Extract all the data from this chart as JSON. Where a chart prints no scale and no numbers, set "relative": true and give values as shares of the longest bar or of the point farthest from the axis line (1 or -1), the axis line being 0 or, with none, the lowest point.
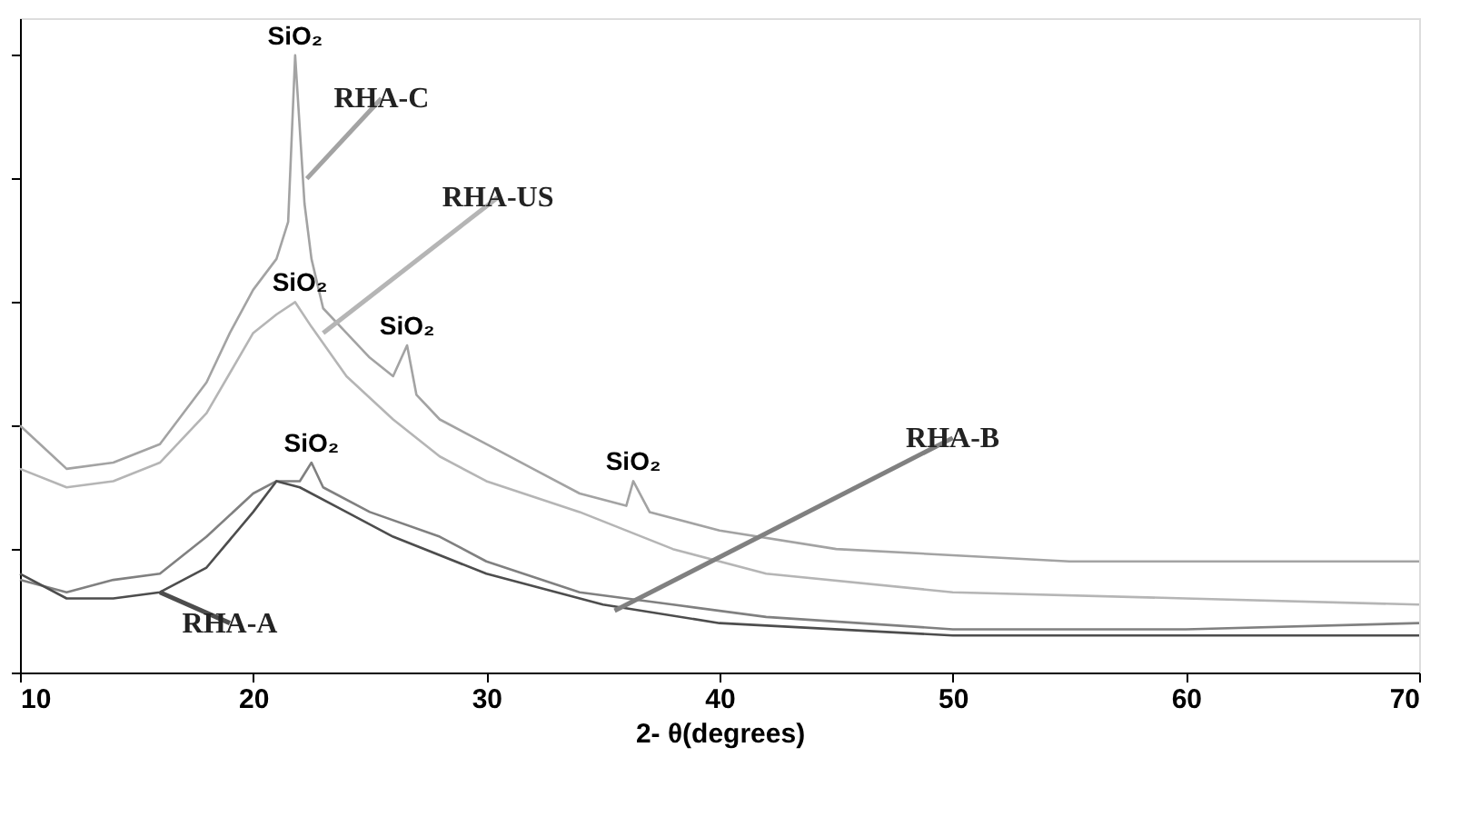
{
  "chart_data": {
    "type": "line",
    "relative": true,
    "xlabel": "2- θ(degrees)",
    "xlim": [
      10,
      70
    ],
    "xticks": [
      10,
      20,
      30,
      40,
      50,
      60,
      70
    ],
    "legend": false,
    "marker": "none",
    "line_style": "solid",
    "series": [
      {
        "name": "RHA-C",
        "color": "#a3a3a3",
        "x": [
          10,
          12,
          14,
          16,
          18,
          19,
          20,
          21,
          21.5,
          21.8,
          22.2,
          22.5,
          23,
          24,
          25,
          26,
          26.6,
          27,
          28,
          30,
          32,
          34,
          36,
          36.3,
          37,
          40,
          45,
          50,
          55,
          60,
          65,
          70
        ],
        "values": [
          0.4,
          0.33,
          0.34,
          0.37,
          0.47,
          0.55,
          0.62,
          0.67,
          0.73,
          1.0,
          0.76,
          0.67,
          0.59,
          0.55,
          0.51,
          0.48,
          0.53,
          0.45,
          0.41,
          0.37,
          0.33,
          0.29,
          0.27,
          0.31,
          0.26,
          0.23,
          0.2,
          0.19,
          0.18,
          0.18,
          0.18,
          0.18
        ]
      },
      {
        "name": "RHA-US",
        "color": "#b5b5b5",
        "x": [
          10,
          12,
          14,
          16,
          18,
          20,
          21,
          21.8,
          22.5,
          24,
          26,
          28,
          30,
          34,
          38,
          42,
          50,
          60,
          70
        ],
        "values": [
          0.33,
          0.3,
          0.31,
          0.34,
          0.42,
          0.55,
          0.58,
          0.6,
          0.56,
          0.48,
          0.41,
          0.35,
          0.31,
          0.26,
          0.2,
          0.16,
          0.13,
          0.12,
          0.11
        ]
      },
      {
        "name": "RHA-B",
        "color": "#808080",
        "x": [
          10,
          12,
          14,
          16,
          18,
          20,
          21,
          22,
          22.5,
          23,
          25,
          28,
          30,
          34,
          38,
          42,
          50,
          60,
          70
        ],
        "values": [
          0.15,
          0.13,
          0.15,
          0.16,
          0.22,
          0.29,
          0.31,
          0.31,
          0.34,
          0.3,
          0.26,
          0.22,
          0.18,
          0.13,
          0.11,
          0.09,
          0.07,
          0.07,
          0.08
        ]
      },
      {
        "name": "RHA-A",
        "color": "#4d4d4d",
        "x": [
          10,
          12,
          14,
          16,
          18,
          20,
          21,
          22,
          24,
          26,
          30,
          35,
          40,
          50,
          60,
          70
        ],
        "values": [
          0.16,
          0.12,
          0.12,
          0.13,
          0.17,
          0.26,
          0.31,
          0.3,
          0.26,
          0.22,
          0.16,
          0.11,
          0.08,
          0.06,
          0.06,
          0.06
        ]
      }
    ],
    "annotations": [
      {
        "text": "SiO₂",
        "x": 21.8,
        "y": 1.0
      },
      {
        "text": "SiO₂",
        "x": 22,
        "y": 0.6
      },
      {
        "text": "SiO₂",
        "x": 26.6,
        "y": 0.53
      },
      {
        "text": "SiO₂",
        "x": 22.5,
        "y": 0.34
      },
      {
        "text": "SiO₂",
        "x": 36.3,
        "y": 0.31
      }
    ]
  }
}
